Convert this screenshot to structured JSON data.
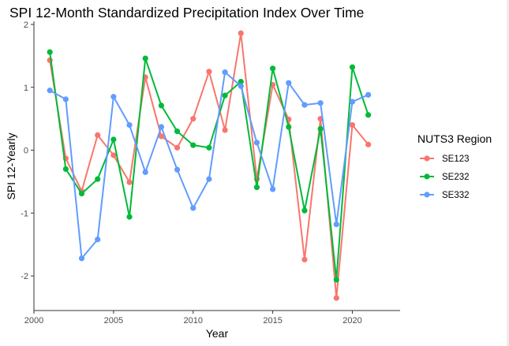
{
  "chart_data": {
    "type": "line",
    "title": "SPI 12-Month Standardized Precipitation Index Over Time",
    "xlabel": "Year",
    "ylabel": "SPI 12-Yearly",
    "xlim": [
      2000,
      2023
    ],
    "ylim": [
      -2.55,
      2.05
    ],
    "xticks": [
      2000,
      2005,
      2010,
      2015,
      2020
    ],
    "yticks": [
      -2,
      -1,
      0,
      1,
      2
    ],
    "grid": false,
    "legend": {
      "title": "NUTS3 Region",
      "position": "right"
    },
    "x": [
      2001,
      2002,
      2003,
      2004,
      2005,
      2006,
      2007,
      2008,
      2009,
      2010,
      2011,
      2012,
      2013,
      2014,
      2015,
      2016,
      2017,
      2018,
      2019,
      2020,
      2021
    ],
    "series": [
      {
        "name": "SE123",
        "color": "#F8766D",
        "values": [
          1.43,
          -0.13,
          -0.65,
          0.24,
          -0.08,
          -0.51,
          1.16,
          0.22,
          0.04,
          0.5,
          1.25,
          0.32,
          1.86,
          -0.46,
          1.04,
          0.49,
          -1.74,
          0.5,
          -2.35,
          0.4,
          0.09
        ]
      },
      {
        "name": "SE232",
        "color": "#00BA38",
        "values": [
          1.56,
          -0.3,
          -0.69,
          -0.46,
          0.17,
          -1.06,
          1.46,
          0.71,
          0.3,
          0.08,
          0.04,
          0.87,
          1.09,
          -0.59,
          1.3,
          0.37,
          -0.96,
          0.34,
          -2.06,
          1.32,
          0.56
        ]
      },
      {
        "name": "SE332",
        "color": "#619CFF",
        "values": [
          0.95,
          0.81,
          -1.72,
          -1.42,
          0.85,
          0.4,
          -0.35,
          0.37,
          -0.31,
          -0.92,
          -0.46,
          1.24,
          1.02,
          0.12,
          -0.62,
          1.07,
          0.72,
          0.75,
          -1.18,
          0.77,
          0.88
        ]
      }
    ]
  }
}
